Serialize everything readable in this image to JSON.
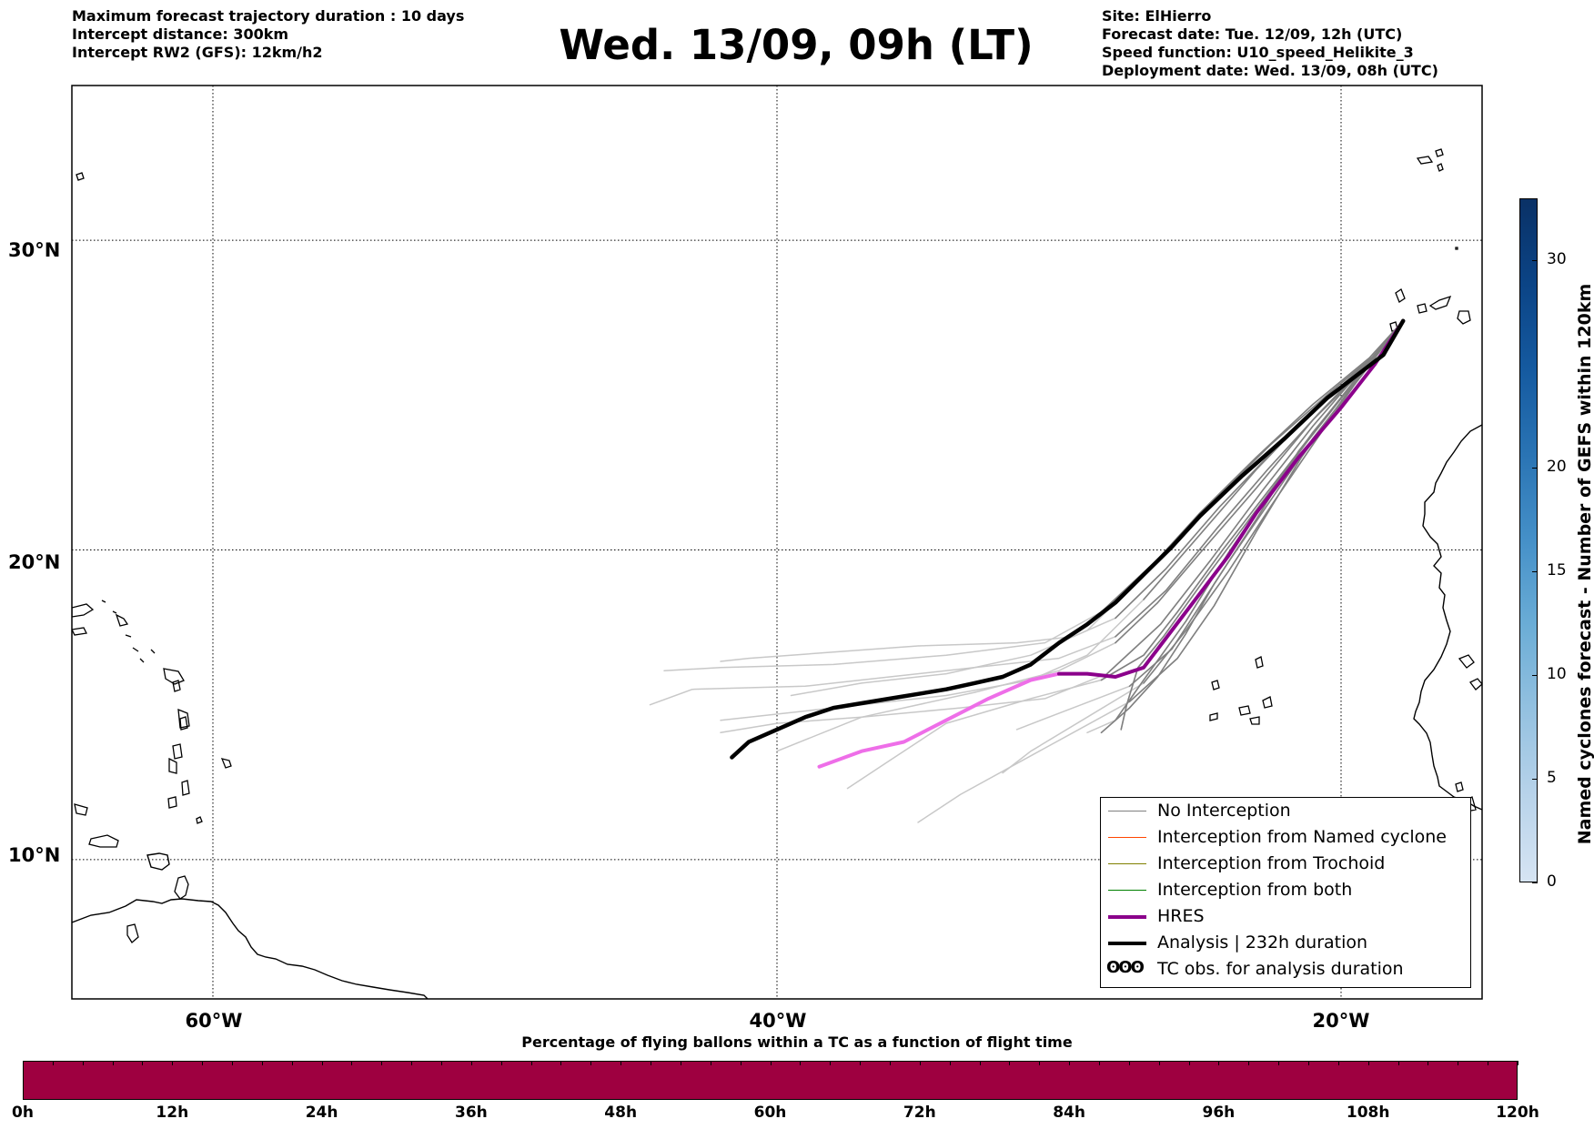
{
  "header": {
    "left_lines": [
      "Maximum forecast trajectory duration : 10 days",
      "Intercept distance: 300km",
      "Intercept RW2 (GFS):  12km/h2"
    ],
    "title": "Wed. 13/09, 09h (LT)",
    "right_lines": [
      "Site: ElHierro",
      "Forecast date: Tue. 12/09, 12h (UTC)",
      "Speed function: U10_speed_Helikite_3",
      "Deployment date: Wed. 13/09, 08h (UTC)"
    ]
  },
  "map": {
    "lat_range": [
      5.5,
      35
    ],
    "lon_range": [
      -65,
      -15
    ],
    "lat_labels": [
      {
        "lat": 30,
        "text": "30°N"
      },
      {
        "lat": 20,
        "text": "20°N"
      },
      {
        "lat": 10,
        "text": "10°N"
      }
    ],
    "lon_labels": [
      {
        "lon": -60,
        "text": "60°W"
      },
      {
        "lon": -40,
        "text": "40°W"
      },
      {
        "lon": -20,
        "text": "20°W"
      }
    ],
    "colors": {
      "no_interception": "#808080",
      "ensemble_light": "#c8c8c8",
      "named_cyclone": "#ff4500",
      "trochoid": "#808000",
      "both": "#008000",
      "hres": "#8b008b",
      "hres_tail": "#ee6ee8",
      "analysis": "#000000",
      "coast": "#000000"
    }
  },
  "chart_data": {
    "type": "line",
    "xlabel": "",
    "ylabel": "",
    "series": [
      {
        "name": "Analysis | 232h duration",
        "points": [
          [
            -17.8,
            27.4
          ],
          [
            -18.5,
            26.3
          ],
          [
            -19.5,
            25.6
          ],
          [
            -20.5,
            24.9
          ],
          [
            -22,
            23.6
          ],
          [
            -23.5,
            22.4
          ],
          [
            -25,
            21.1
          ],
          [
            -26,
            20.1
          ],
          [
            -27,
            19.2
          ],
          [
            -28,
            18.3
          ],
          [
            -29,
            17.6
          ],
          [
            -30,
            17.0
          ],
          [
            -31,
            16.3
          ],
          [
            -32,
            15.9
          ],
          [
            -33,
            15.7
          ],
          [
            -34,
            15.5
          ],
          [
            -36,
            15.2
          ],
          [
            -38,
            14.9
          ],
          [
            -39,
            14.6
          ],
          [
            -40,
            14.2
          ],
          [
            -41,
            13.8
          ],
          [
            -41.6,
            13.3
          ]
        ]
      },
      {
        "name": "HRES",
        "points": [
          [
            -17.8,
            27.4
          ],
          [
            -18.8,
            26.0
          ],
          [
            -20,
            24.6
          ],
          [
            -21.5,
            23.0
          ],
          [
            -23,
            21.2
          ],
          [
            -24,
            19.8
          ],
          [
            -25,
            18.6
          ],
          [
            -26,
            17.4
          ],
          [
            -27,
            16.2
          ],
          [
            -28,
            15.9
          ],
          [
            -29,
            16.0
          ],
          [
            -30,
            16.0
          ]
        ]
      },
      {
        "name": "HRES tail",
        "points": [
          [
            -30,
            16.0
          ],
          [
            -31,
            15.8
          ],
          [
            -32.5,
            15.2
          ],
          [
            -34,
            14.5
          ],
          [
            -35.5,
            13.8
          ],
          [
            -37,
            13.5
          ],
          [
            -38.5,
            13.0
          ]
        ]
      },
      {
        "name": "No Interception",
        "members": [
          [
            [
              -17.8,
              27.4
            ],
            [
              -19,
              26.1
            ],
            [
              -21,
              24.5
            ],
            [
              -23,
              22.6
            ],
            [
              -25,
              20.5
            ],
            [
              -27,
              18.4
            ],
            [
              -29,
              16.6
            ],
            [
              -31,
              15.8
            ],
            [
              -34,
              15.3
            ],
            [
              -38,
              14.9
            ],
            [
              -42,
              14.5
            ]
          ],
          [
            [
              -17.8,
              27.4
            ],
            [
              -19,
              26.0
            ],
            [
              -21,
              24.2
            ],
            [
              -23,
              22.0
            ],
            [
              -25,
              19.9
            ],
            [
              -26.5,
              18.3
            ],
            [
              -28,
              17.0
            ],
            [
              -30,
              16.1
            ],
            [
              -33,
              15.4
            ],
            [
              -37,
              14.6
            ],
            [
              -40,
              13.5
            ]
          ],
          [
            [
              -17.8,
              27.4
            ],
            [
              -19.2,
              25.8
            ],
            [
              -21,
              23.8
            ],
            [
              -22.5,
              21.9
            ],
            [
              -24,
              19.9
            ],
            [
              -25.5,
              17.7
            ],
            [
              -27,
              15.8
            ],
            [
              -28,
              14.5
            ],
            [
              -29,
              14.1
            ]
          ],
          [
            [
              -17.8,
              27.4
            ],
            [
              -19.4,
              25.5
            ],
            [
              -21,
              23.4
            ],
            [
              -22.5,
              21.4
            ],
            [
              -24,
              19.3
            ],
            [
              -25.5,
              17.4
            ],
            [
              -27,
              15.7
            ],
            [
              -29,
              14.6
            ],
            [
              -31,
              13.5
            ],
            [
              -32,
              12.8
            ]
          ],
          [
            [
              -17.8,
              27.4
            ],
            [
              -18.8,
              26.3
            ],
            [
              -20.5,
              25.0
            ],
            [
              -22.5,
              23.4
            ],
            [
              -24.5,
              21.6
            ],
            [
              -26.5,
              19.7
            ],
            [
              -28.5,
              18.0
            ],
            [
              -30.5,
              17.0
            ],
            [
              -34,
              16.6
            ],
            [
              -38,
              16.3
            ],
            [
              -42,
              16.2
            ],
            [
              -44,
              16.1
            ]
          ],
          [
            [
              -17.8,
              27.4
            ],
            [
              -19,
              26.2
            ],
            [
              -21,
              24.7
            ],
            [
              -23,
              23.0
            ],
            [
              -25,
              21.2
            ],
            [
              -27,
              19.2
            ],
            [
              -29,
              17.4
            ],
            [
              -31,
              16.6
            ],
            [
              -34,
              16.0
            ],
            [
              -37,
              15.7
            ],
            [
              -39.5,
              15.3
            ]
          ],
          [
            [
              -17.8,
              27.4
            ],
            [
              -19.5,
              25.5
            ],
            [
              -21.5,
              23.2
            ],
            [
              -23,
              21.0
            ],
            [
              -24.5,
              18.9
            ],
            [
              -25.5,
              17.3
            ],
            [
              -26.5,
              15.9
            ],
            [
              -27.5,
              14.9
            ],
            [
              -28.5,
              14.1
            ]
          ],
          [
            [
              -17.8,
              27.4
            ],
            [
              -19.3,
              25.6
            ],
            [
              -21,
              23.6
            ],
            [
              -22.5,
              21.6
            ],
            [
              -24,
              19.6
            ],
            [
              -25,
              18.2
            ],
            [
              -26,
              16.8
            ],
            [
              -27.5,
              15.6
            ],
            [
              -29.5,
              14.9
            ],
            [
              -31.5,
              14.2
            ]
          ],
          [
            [
              -17.8,
              27.4
            ],
            [
              -19.1,
              25.9
            ],
            [
              -20.8,
              24.0
            ],
            [
              -22.5,
              22.0
            ],
            [
              -24.2,
              20.0
            ],
            [
              -25.8,
              18.0
            ],
            [
              -27,
              16.6
            ],
            [
              -28.5,
              15.8
            ],
            [
              -31,
              15.2
            ],
            [
              -34,
              14.4
            ],
            [
              -36,
              13.2
            ],
            [
              -37.5,
              12.3
            ]
          ],
          [
            [
              -17.8,
              27.4
            ],
            [
              -19,
              26.1
            ],
            [
              -20.8,
              24.4
            ],
            [
              -22.6,
              22.6
            ],
            [
              -24.4,
              20.7
            ],
            [
              -26.2,
              18.7
            ],
            [
              -28,
              17.2
            ],
            [
              -30,
              16.5
            ],
            [
              -33,
              16.2
            ],
            [
              -36,
              15.9
            ],
            [
              -39,
              15.6
            ],
            [
              -43,
              15.5
            ],
            [
              -44.5,
              15.0
            ]
          ],
          [
            [
              -17.8,
              27.4
            ],
            [
              -19.6,
              25.3
            ],
            [
              -21.4,
              23.0
            ],
            [
              -23,
              20.6
            ],
            [
              -24.5,
              18.2
            ],
            [
              -25.8,
              16.5
            ],
            [
              -27.5,
              15.1
            ],
            [
              -29.5,
              14.1
            ],
            [
              -31.5,
              13.1
            ],
            [
              -33.5,
              12.1
            ],
            [
              -35,
              11.2
            ]
          ],
          [
            [
              -17.8,
              27.4
            ],
            [
              -18.9,
              26.2
            ],
            [
              -20.6,
              24.8
            ],
            [
              -22.4,
              23.2
            ],
            [
              -24.3,
              21.4
            ],
            [
              -26.2,
              19.4
            ],
            [
              -28,
              17.8
            ],
            [
              -29.5,
              17.2
            ],
            [
              -31.5,
              17.0
            ],
            [
              -35,
              16.9
            ],
            [
              -38,
              16.7
            ],
            [
              -41,
              16.5
            ],
            [
              -42,
              16.4
            ]
          ],
          [
            [
              -17.8,
              27.4
            ],
            [
              -19.3,
              25.7
            ],
            [
              -21.2,
              23.5
            ],
            [
              -23,
              21.3
            ],
            [
              -24.8,
              19.1
            ],
            [
              -26.3,
              17.2
            ],
            [
              -27.2,
              16.2
            ],
            [
              -27.6,
              15.0
            ],
            [
              -27.8,
              14.2
            ]
          ],
          [
            [
              -17.8,
              27.4
            ],
            [
              -19.2,
              25.9
            ],
            [
              -21,
              24.0
            ],
            [
              -22.8,
              21.9
            ],
            [
              -24.6,
              19.7
            ],
            [
              -26.4,
              17.6
            ],
            [
              -28.3,
              16.0
            ],
            [
              -30.5,
              15.2
            ],
            [
              -33.5,
              14.9
            ],
            [
              -37,
              14.6
            ],
            [
              -40,
              14.4
            ],
            [
              -42,
              14.1
            ]
          ]
        ]
      }
    ]
  },
  "legend": {
    "items": [
      {
        "label": "No Interception",
        "color": "#808080",
        "width": 1.2
      },
      {
        "label": "Interception from Named cyclone",
        "color": "#ff4500",
        "width": 1.2
      },
      {
        "label": "Interception from Trochoid",
        "color": "#808000",
        "width": 1.2
      },
      {
        "label": "Interception from both",
        "color": "#008000",
        "width": 1.2
      },
      {
        "label": "HRES",
        "color": "#8b008b",
        "width": 4
      },
      {
        "label": "Analysis | 232h duration",
        "color": "#000000",
        "width": 4
      }
    ],
    "obs_glyph": "ʘʘʘ",
    "obs_label": "TC obs. for analysis duration"
  },
  "colorbar_right": {
    "label": "Named cyclones forecast - Number of GEFS within 120km",
    "min": 0,
    "max": 33,
    "ticks": [
      {
        "value": 0,
        "text": "0"
      },
      {
        "value": 5,
        "text": "5"
      },
      {
        "value": 10,
        "text": "10"
      },
      {
        "value": 15,
        "text": "15"
      },
      {
        "value": 20,
        "text": "20"
      },
      {
        "value": 30,
        "text": "30"
      }
    ],
    "colors": [
      "#d6e4f3",
      "#b8d3ea",
      "#94c1e0",
      "#6badd6",
      "#4590c8",
      "#2a74b4",
      "#155aa0",
      "#0b4486",
      "#0a3166"
    ]
  },
  "bottom_colorbar": {
    "title": "Percentage of flying ballons within a TC as a function of flight time",
    "color": "#9e0040",
    "ticks": [
      "0h",
      "12h",
      "24h",
      "36h",
      "48h",
      "60h",
      "72h",
      "84h",
      "96h",
      "108h",
      "120h"
    ]
  }
}
